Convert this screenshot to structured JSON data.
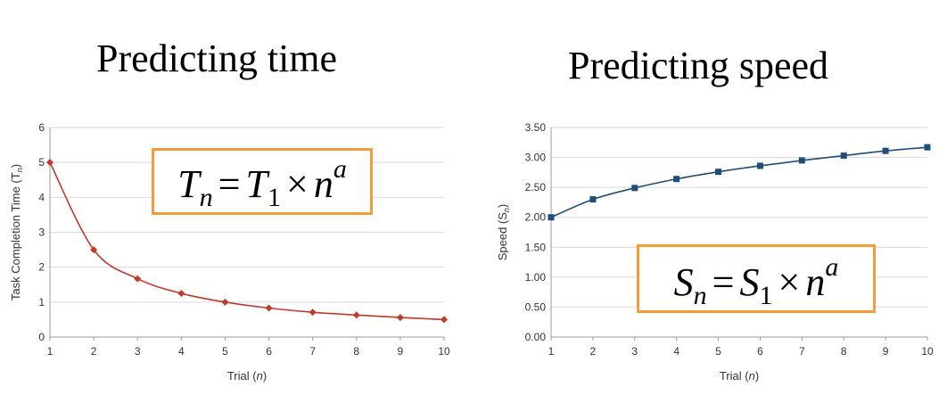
{
  "headings": {
    "left": "Predicting time",
    "right": "Predicting speed"
  },
  "formulas": {
    "left": {
      "var": "T",
      "sub_n": "n",
      "eq": "=",
      "sub_1": "1",
      "times": "×",
      "n": "n",
      "exp": "a"
    },
    "right": {
      "var": "S",
      "sub_n": "n",
      "eq": "=",
      "sub_1": "1",
      "times": "×",
      "n": "n",
      "exp": "a"
    }
  },
  "colors": {
    "left_series": "#c0392b",
    "right_series": "#1f4e79",
    "formula_border": "#f39c3a",
    "grid": "#d9d9d9"
  },
  "chart_data": [
    {
      "type": "line",
      "title": "",
      "xlabel": "Trial (n)",
      "ylabel": "Task Completion Time (Tn)",
      "x": [
        1,
        2,
        3,
        4,
        5,
        6,
        7,
        8,
        9,
        10
      ],
      "series": [
        {
          "values": [
            5,
            2.5,
            1.67,
            1.25,
            1,
            0.83,
            0.71,
            0.63,
            0.56,
            0.5
          ]
        }
      ],
      "xlim": [
        1,
        10
      ],
      "ylim": [
        0,
        6
      ],
      "xticks": [
        "1",
        "2",
        "3",
        "4",
        "5",
        "6",
        "7",
        "8",
        "9",
        "10"
      ],
      "yticks": [
        "0",
        "1",
        "2",
        "3",
        "4",
        "5",
        "6"
      ],
      "grid": true,
      "marker": "diamond"
    },
    {
      "type": "line",
      "title": "",
      "xlabel": "Trial (n)",
      "ylabel": "Speed (Sn)",
      "x": [
        1,
        2,
        3,
        4,
        5,
        6,
        7,
        8,
        9,
        10
      ],
      "series": [
        {
          "values": [
            2.0,
            2.3,
            2.49,
            2.64,
            2.76,
            2.86,
            2.95,
            3.03,
            3.11,
            3.17
          ]
        }
      ],
      "xlim": [
        1,
        10
      ],
      "ylim": [
        0,
        3.5
      ],
      "xticks": [
        "1",
        "2",
        "3",
        "4",
        "5",
        "6",
        "7",
        "8",
        "9",
        "10"
      ],
      "yticks": [
        "0.00",
        "0.50",
        "1.00",
        "1.50",
        "2.00",
        "2.50",
        "3.00",
        "3.50"
      ],
      "grid": true,
      "marker": "square"
    }
  ]
}
